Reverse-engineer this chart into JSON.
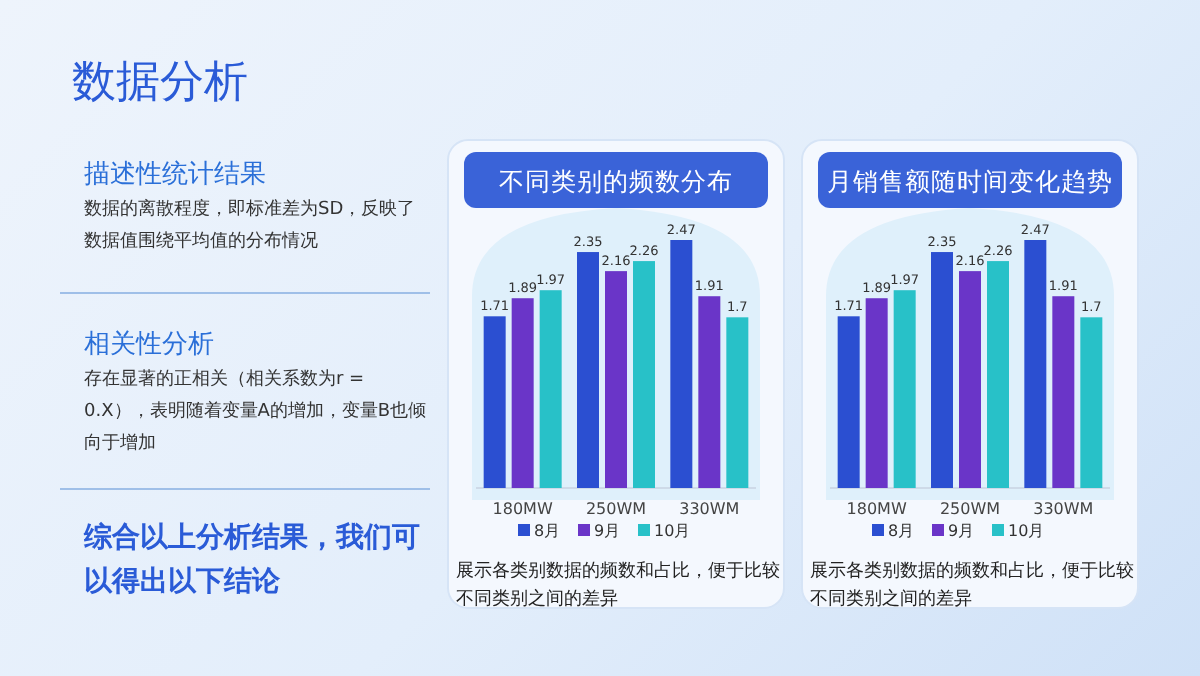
{
  "chart_data": [
    {
      "type": "other",
      "title": "数据分析",
      "annotations": [
        "描述性统计结果",
        "数据的离散程度，即标准差为SD，反映了数据值围绕平均值的分布情况",
        "相关性分析",
        "存在显著的正相关（相关系数为r = 0.X），表明随着变量A的增加，变量B也倾向于增加",
        "综合以上分析结果，我们可以得出以下结论"
      ]
    },
    {
      "type": "bar",
      "title": "不同类别的频数分布",
      "categories": [
        "180MW",
        "250WM",
        "330WM"
      ],
      "data_labels": true,
      "legend": "bottom",
      "series": [
        {
          "name": "8月",
          "color": "#2b4fd1",
          "values": [
            1.71,
            2.35,
            2.47
          ]
        },
        {
          "name": "9月",
          "color": "#6a35c8",
          "values": [
            1.89,
            2.16,
            1.91
          ]
        },
        {
          "name": "10月",
          "color": "#28c1c8",
          "values": [
            1.97,
            2.26,
            1.7
          ]
        }
      ],
      "annotations": [
        "展示各类别数据的频数和占比，便于比较不同类别之间的差异"
      ]
    },
    {
      "type": "bar",
      "title": "月销售额随时间变化趋势",
      "categories": [
        "180MW",
        "250WM",
        "330WM"
      ],
      "data_labels": true,
      "legend": "bottom",
      "series": [
        {
          "name": "8月",
          "color": "#2b4fd1",
          "values": [
            1.71,
            2.35,
            2.47
          ]
        },
        {
          "name": "9月",
          "color": "#6a35c8",
          "values": [
            1.89,
            2.16,
            1.91
          ]
        },
        {
          "name": "10月",
          "color": "#28c1c8",
          "values": [
            1.97,
            2.26,
            1.7
          ]
        }
      ],
      "annotations": [
        "展示各类别数据的频数和占比，便于比较不同类别之间的差异"
      ]
    }
  ]
}
